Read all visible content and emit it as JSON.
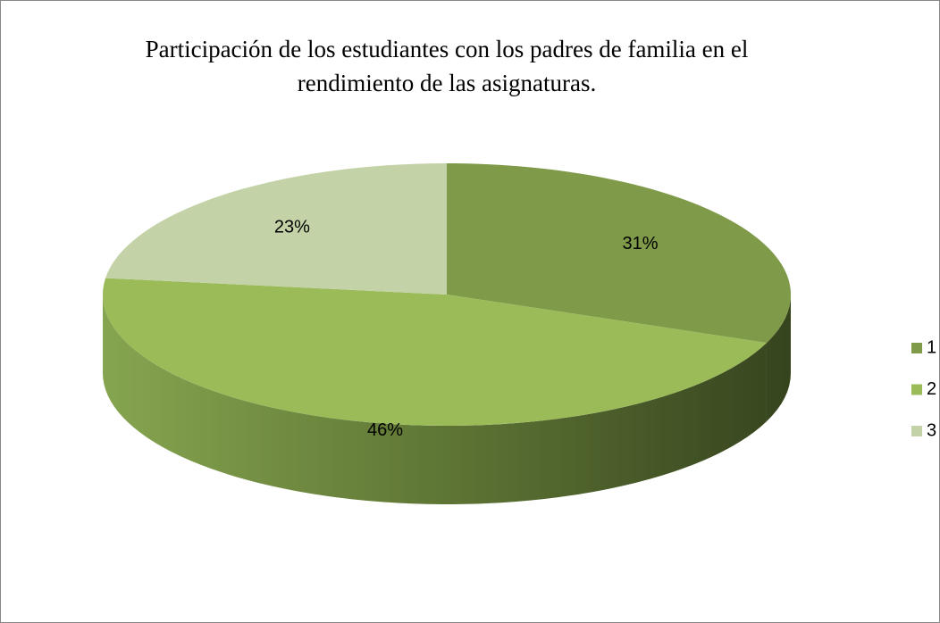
{
  "chart_data": {
    "type": "pie",
    "title": "Participación de los estudiantes con los padres de familia en el rendimiento de las asignaturas.",
    "categories": [
      "1",
      "2",
      "3"
    ],
    "values": [
      31,
      46,
      23
    ],
    "value_labels": [
      "31%",
      "46%",
      "23%"
    ],
    "colors": [
      "#7f9a48",
      "#9bbb59",
      "#c3d3a7"
    ],
    "legend": "right"
  }
}
